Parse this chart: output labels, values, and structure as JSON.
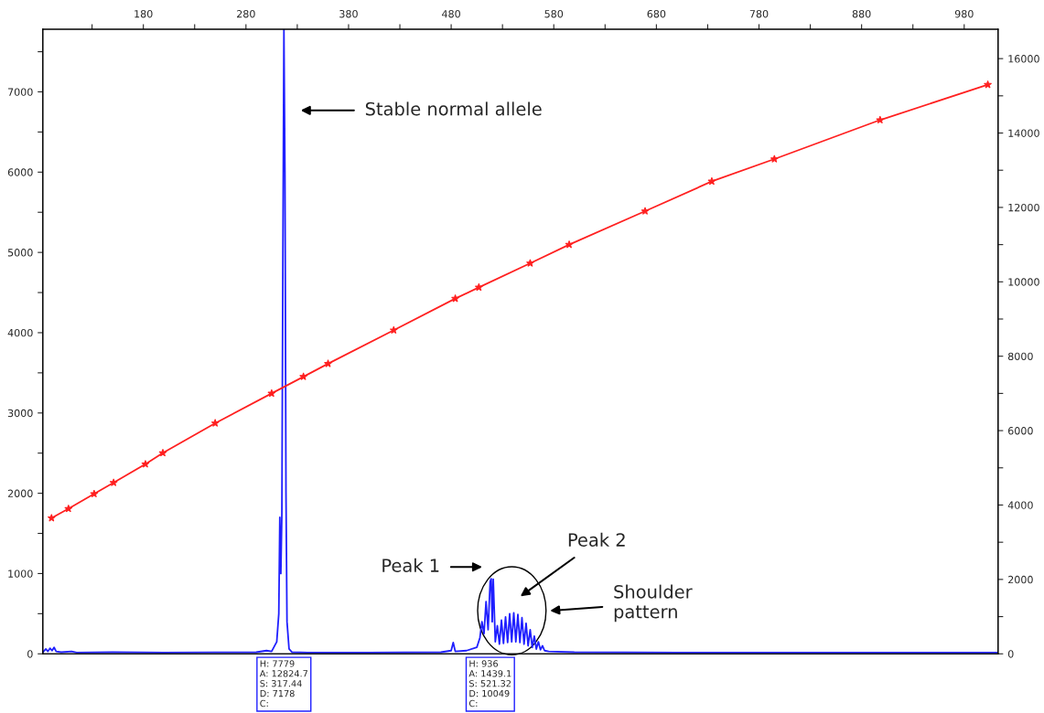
{
  "chart_data": {
    "type": "line",
    "xlim": [
      82,
      1013
    ],
    "xticks": [
      {
        "value": 130,
        "label": null
      },
      180,
      {
        "value": 230,
        "label": null
      },
      280,
      {
        "value": 330,
        "label": null
      },
      380,
      {
        "value": 430,
        "label": null
      },
      480,
      {
        "value": 530,
        "label": null
      },
      580,
      {
        "value": 630,
        "label": null
      },
      680,
      {
        "value": 730,
        "label": null
      },
      780,
      {
        "value": 830,
        "label": null
      },
      880,
      {
        "value": 930,
        "label": null
      },
      980
    ],
    "ylim": [
      0,
      7780
    ],
    "yticks": [
      0,
      {
        "value": 500,
        "label": null
      },
      1000,
      {
        "value": 1500,
        "label": null
      },
      2000,
      {
        "value": 2500,
        "label": null
      },
      3000,
      {
        "value": 3500,
        "label": null
      },
      4000,
      {
        "value": 4500,
        "label": null
      },
      5000,
      {
        "value": 5500,
        "label": null
      },
      6000,
      {
        "value": 6500,
        "label": null
      },
      7000,
      {
        "value": 7500,
        "label": null
      }
    ],
    "y2lim": [
      0,
      16790
    ],
    "y2ticks": [
      0,
      {
        "value": 1000,
        "label": null
      },
      2000,
      {
        "value": 3000,
        "label": null
      },
      4000,
      {
        "value": 5000,
        "label": null
      },
      6000,
      {
        "value": 7000,
        "label": null
      },
      8000,
      {
        "value": 9000,
        "label": null
      },
      10000,
      {
        "value": 11000,
        "label": null
      },
      12000,
      {
        "value": 13000,
        "label": null
      },
      14000,
      {
        "value": 15000,
        "label": null
      },
      16000
    ],
    "grid": false,
    "legend": false,
    "series": [
      {
        "color": "#1f1fff",
        "marker": "none",
        "x": [
          82,
          85,
          87,
          89,
          91,
          93,
          95,
          100,
          110,
          115,
          150,
          200,
          250,
          290,
          300,
          305,
          310,
          312,
          313,
          314,
          315,
          316,
          317,
          318,
          319,
          320,
          322,
          325,
          340,
          400,
          470,
          480,
          482,
          484,
          495,
          505,
          508,
          510,
          512,
          514,
          516,
          518,
          519,
          520,
          521,
          523,
          525,
          527,
          529,
          531,
          533,
          535,
          537,
          539,
          541,
          543,
          545,
          547,
          549,
          551,
          553,
          555,
          557,
          559,
          561,
          563,
          565,
          567,
          569,
          571,
          575,
          600,
          700,
          800,
          900,
          1013
        ],
        "values": [
          20,
          60,
          30,
          70,
          40,
          80,
          30,
          20,
          30,
          15,
          20,
          15,
          18,
          20,
          40,
          30,
          150,
          500,
          1700,
          1000,
          1750,
          5000,
          7779,
          6000,
          2000,
          400,
          60,
          20,
          15,
          15,
          20,
          40,
          140,
          30,
          40,
          80,
          200,
          400,
          250,
          650,
          300,
          900,
          936,
          400,
          930,
          150,
          350,
          120,
          420,
          130,
          460,
          140,
          500,
          150,
          510,
          150,
          490,
          140,
          450,
          120,
          380,
          100,
          300,
          80,
          220,
          60,
          150,
          50,
          100,
          40,
          30,
          20,
          15,
          15,
          15,
          15
        ]
      },
      {
        "color": "#ff2020",
        "marker": "star",
        "axis": "y2",
        "x": [
          90.5,
          107,
          132,
          151,
          182,
          199,
          250,
          305,
          336,
          360,
          424,
          484,
          507,
          557,
          595,
          669,
          734,
          795,
          898,
          1003
        ],
        "values": [
          3650,
          3900,
          4300,
          4600,
          5100,
          5400,
          6200,
          7000,
          7450,
          7800,
          8700,
          9550,
          9850,
          10500,
          11000,
          11900,
          12700,
          13300,
          14350,
          15300
        ]
      }
    ],
    "annotations": [
      "Stable normal allele",
      "Peak 1",
      "Peak 2",
      "Shoulder\npattern",
      "H: 7779\nA: 12824.7\nS: 317.44\nD: 7178\nC:",
      "H: 936\nA: 1439.1\nS: 521.32\nD: 10049\nC:"
    ]
  }
}
